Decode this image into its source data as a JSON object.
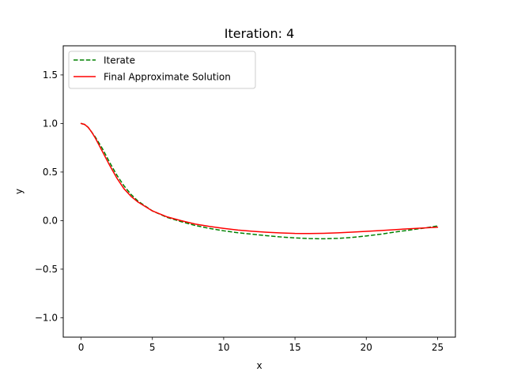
{
  "chart_data": {
    "type": "line",
    "title": "Iteration: 4",
    "xlabel": "x",
    "ylabel": "y",
    "xlim": [
      -1.25,
      26.25
    ],
    "ylim": [
      -1.2,
      1.8
    ],
    "xticks": [
      0,
      5,
      10,
      15,
      20,
      25
    ],
    "xtick_labels": [
      "0",
      "5",
      "10",
      "15",
      "20",
      "25"
    ],
    "yticks": [
      -1.0,
      -0.5,
      0.0,
      0.5,
      1.0,
      1.5
    ],
    "ytick_labels": [
      "−1.0",
      "−0.5",
      "0.0",
      "0.5",
      "1.0",
      "1.5"
    ],
    "grid": false,
    "legend_position": "upper-left",
    "series": [
      {
        "name": "Iterate",
        "color": "#008000",
        "style": "dashed",
        "x": [
          0,
          0.25,
          0.5,
          0.75,
          1.0,
          1.25,
          1.5,
          2.0,
          2.5,
          3.0,
          3.5,
          4.0,
          5.0,
          6.0,
          7.0,
          8.0,
          9.0,
          10.0,
          11.0,
          12.0,
          13.0,
          14.0,
          15.0,
          16.0,
          17.0,
          18.0,
          19.0,
          20.0,
          21.0,
          22.0,
          23.0,
          24.0,
          25.0
        ],
        "y": [
          1.0,
          0.99,
          0.96,
          0.91,
          0.86,
          0.8,
          0.74,
          0.6,
          0.47,
          0.36,
          0.27,
          0.2,
          0.1,
          0.035,
          -0.01,
          -0.05,
          -0.08,
          -0.105,
          -0.125,
          -0.14,
          -0.155,
          -0.168,
          -0.178,
          -0.185,
          -0.187,
          -0.183,
          -0.173,
          -0.158,
          -0.14,
          -0.118,
          -0.098,
          -0.078,
          -0.055
        ]
      },
      {
        "name": "Final Approximate Solution",
        "color": "#ff0000",
        "style": "solid",
        "x": [
          0,
          0.25,
          0.5,
          0.75,
          1.0,
          1.25,
          1.5,
          2.0,
          2.5,
          3.0,
          3.5,
          4.0,
          5.0,
          6.0,
          7.0,
          8.0,
          9.0,
          10.0,
          11.0,
          12.0,
          13.0,
          14.0,
          15.0,
          16.0,
          17.0,
          18.0,
          19.0,
          20.0,
          21.0,
          22.0,
          23.0,
          24.0,
          25.0
        ],
        "y": [
          1.0,
          0.99,
          0.96,
          0.91,
          0.85,
          0.78,
          0.71,
          0.57,
          0.44,
          0.33,
          0.25,
          0.19,
          0.1,
          0.04,
          0.0,
          -0.035,
          -0.06,
          -0.08,
          -0.097,
          -0.11,
          -0.12,
          -0.127,
          -0.132,
          -0.133,
          -0.131,
          -0.126,
          -0.119,
          -0.111,
          -0.102,
          -0.093,
          -0.084,
          -0.076,
          -0.068
        ]
      }
    ]
  }
}
